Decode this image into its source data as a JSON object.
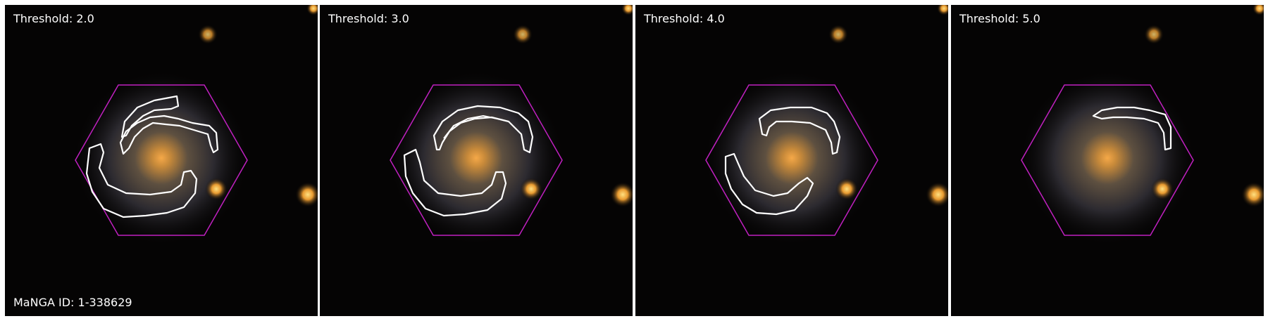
{
  "panels": [
    {
      "label": "Threshold: 2.0",
      "footer": "MaNGA ID: 1-338629"
    },
    {
      "label": "Threshold: 3.0",
      "footer": ""
    },
    {
      "label": "Threshold: 4.0",
      "footer": ""
    },
    {
      "label": "Threshold: 5.0",
      "footer": ""
    }
  ],
  "colors": {
    "background": "#050404",
    "hexagon": "#c020c0",
    "contour": "#ffffff",
    "galaxy_core": "#f0a040",
    "star": "#ffc030"
  }
}
